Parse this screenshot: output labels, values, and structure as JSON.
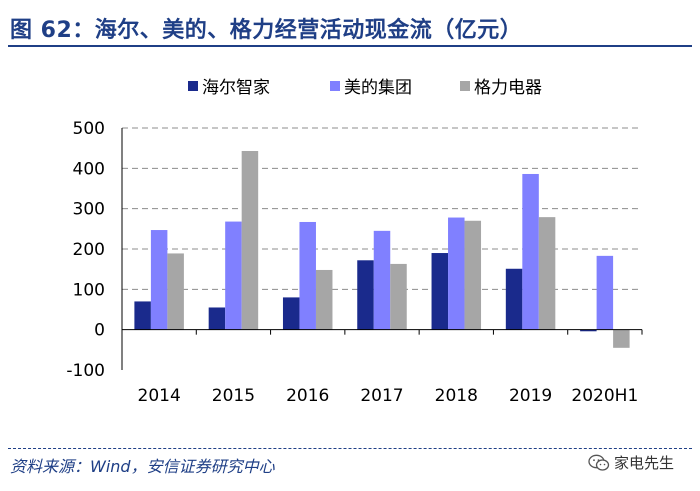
{
  "header": {
    "title": "图 62：海尔、美的、格力经营活动现金流（亿元）"
  },
  "chart_data": {
    "type": "bar",
    "title": "图 62：海尔、美的、格力经营活动现金流（亿元）",
    "categories": [
      "2014",
      "2015",
      "2016",
      "2017",
      "2018",
      "2019",
      "2020H1"
    ],
    "series": [
      {
        "name": "海尔智家",
        "color": "#1a2a8c",
        "values": [
          70,
          55,
          80,
          172,
          190,
          151,
          -4
        ]
      },
      {
        "name": "美的集团",
        "color": "#8080ff",
        "values": [
          247,
          268,
          267,
          245,
          278,
          386,
          183
        ]
      },
      {
        "name": "格力电器",
        "color": "#a6a6a6",
        "values": [
          189,
          443,
          148,
          163,
          270,
          279,
          -45
        ]
      }
    ],
    "ylim": [
      -100,
      500
    ],
    "yticks": [
      -100,
      0,
      100,
      200,
      300,
      400,
      500
    ],
    "ytick_labels": [
      "-100",
      "0",
      "100",
      "200",
      "300",
      "400",
      "500"
    ],
    "xlabel": "",
    "ylabel": "",
    "grid": true,
    "legend_position": "top"
  },
  "footer": {
    "source": "资料来源：Wind，安信证券研究中心",
    "brand": "家电先生",
    "brand_icon": "wechat-icon"
  }
}
